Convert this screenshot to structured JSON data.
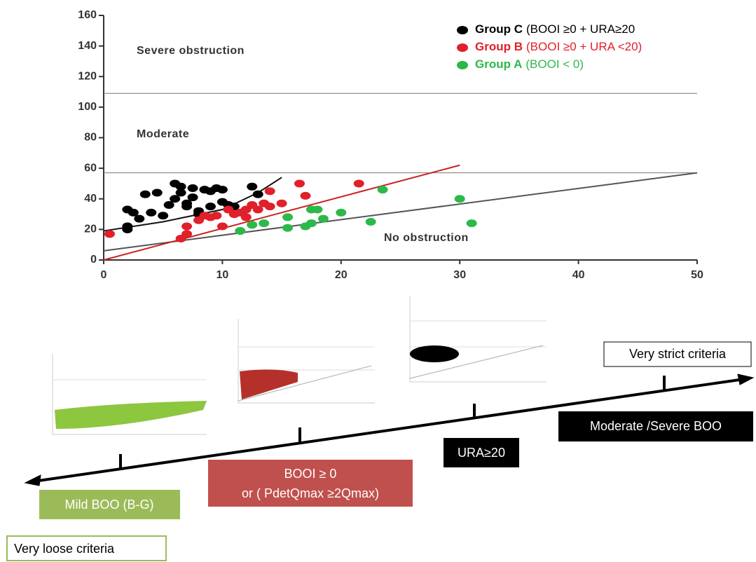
{
  "chart_data": {
    "type": "scatter",
    "xlim": [
      0,
      50
    ],
    "ylim": [
      0,
      160
    ],
    "xticks": [
      0,
      10,
      20,
      30,
      40,
      50
    ],
    "yticks": [
      0,
      20,
      40,
      60,
      80,
      100,
      120,
      140,
      160
    ],
    "annotations": [
      "Severe obstruction",
      "Moderate",
      "No obstruction"
    ],
    "hlines": [
      109,
      57
    ],
    "lines": [
      {
        "color": "#555555",
        "x": [
          0,
          50
        ],
        "y": [
          6,
          57
        ]
      },
      {
        "color": "#cc2222",
        "x": [
          0,
          30
        ],
        "y": [
          0,
          62
        ]
      },
      {
        "color": "#111111",
        "x": [
          0,
          5,
          10,
          13,
          15
        ],
        "y": [
          19,
          25,
          33,
          44,
          54
        ]
      }
    ],
    "series": [
      {
        "name": "Group C",
        "description": "(BOOI ≥0 + URA≥20",
        "color": "#000000",
        "x": [
          2,
          2.5,
          2,
          2,
          3.5,
          3,
          4,
          4.5,
          5,
          6,
          6.5,
          6,
          6.5,
          7,
          7.5,
          7.5,
          8,
          8,
          8.5,
          9,
          9.5,
          10,
          10,
          10.5,
          9,
          12.5,
          13,
          5.5,
          7,
          11
        ],
        "y": [
          33,
          31,
          22,
          20,
          43,
          27,
          31,
          44,
          29,
          50,
          48,
          40,
          44,
          37,
          41,
          47,
          32,
          30,
          46,
          45,
          47,
          46,
          38,
          36,
          35,
          48,
          43,
          36,
          35,
          35
        ]
      },
      {
        "name": "Group B",
        "description": "(BOOI ≥0 + URA <20)",
        "color": "#e0202a",
        "x": [
          0.5,
          6.5,
          7,
          7,
          8,
          8.5,
          9,
          9.5,
          10,
          11,
          11.5,
          12,
          12.5,
          13,
          13.5,
          14,
          14,
          15,
          16.5,
          17,
          21.5,
          10.5,
          12
        ],
        "y": [
          17,
          14,
          17,
          22,
          26,
          29,
          28,
          29,
          22,
          30,
          31,
          28,
          36,
          33,
          37,
          35,
          45,
          37,
          50,
          42,
          50,
          33,
          33
        ]
      },
      {
        "name": "Group A",
        "description": "(BOOI < 0)",
        "color": "#2db84a",
        "x": [
          11.5,
          12.5,
          13.5,
          15.5,
          15.5,
          17.5,
          17.5,
          18,
          18.5,
          20,
          22.5,
          23.5,
          30,
          31,
          17
        ],
        "y": [
          19,
          23,
          24,
          21,
          28,
          24,
          33,
          33,
          27,
          31,
          25,
          46,
          40,
          24,
          22
        ]
      }
    ]
  },
  "diagram": {
    "strict": "Very strict criteria",
    "moderate_severe": "Moderate /Severe BOO",
    "ura": "URA≥20",
    "booi": [
      "BOOI ≥ 0",
      "or ( PdetQmax ≥2Qmax)"
    ],
    "mild": "Mild BOO (B-G)",
    "loose": "Very loose criteria"
  }
}
